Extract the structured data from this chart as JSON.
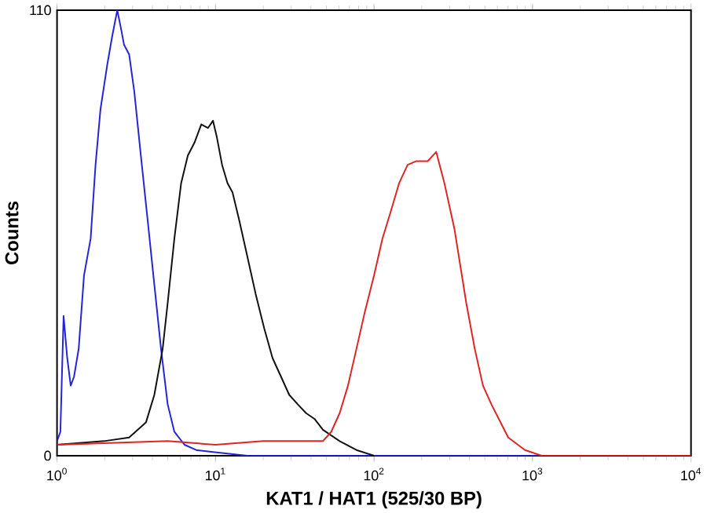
{
  "chart_data": {
    "type": "line",
    "xlabel": "KAT1 / HAT1 (525/30 BP)",
    "ylabel": "Counts",
    "log": "x",
    "xlim": [
      1,
      10000
    ],
    "ylim": [
      0,
      110
    ],
    "xticks": [
      {
        "value": 1,
        "label": "10$^{0}$"
      },
      {
        "value": 10,
        "label": "10$^{1}$"
      },
      {
        "value": 100,
        "label": "10$^{2}$"
      },
      {
        "value": 1000,
        "label": "10$^{3}$"
      },
      {
        "value": 10000,
        "label": "10$^{4}$"
      }
    ],
    "yticks": [
      0,
      110
    ],
    "series": [
      {
        "color": "#2424d8",
        "x": [
          1,
          1.05,
          1.1,
          1.16,
          1.22,
          1.28,
          1.37,
          1.48,
          1.63,
          1.75,
          1.88,
          2.08,
          2.23,
          2.4,
          2.52,
          2.65,
          2.85,
          3.07,
          3.38,
          3.73,
          4.11,
          4.53,
          4.99,
          5.5,
          6.37,
          7.55,
          9.64,
          15.9,
          10000
        ],
        "values": [
          3.6,
          5.9,
          34.5,
          24.1,
          17.3,
          19.5,
          26.4,
          44.5,
          53.6,
          71.8,
          85.5,
          96.8,
          103.6,
          110,
          105.9,
          101.4,
          99.1,
          90,
          74.1,
          58.2,
          42.3,
          26.4,
          12.7,
          5.9,
          2.7,
          1.4,
          0.9,
          0,
          0
        ]
      },
      {
        "color": "#111111",
        "x": [
          1,
          1.98,
          2.85,
          3.64,
          4.11,
          4.64,
          4.99,
          5.5,
          6.07,
          6.69,
          7.37,
          8.13,
          8.96,
          9.64,
          10.2,
          11.0,
          11.9,
          12.8,
          14.1,
          15.9,
          17.9,
          20.3,
          22.9,
          25.9,
          29.2,
          33,
          37.3,
          42.1,
          47.6,
          60.7,
          77.5,
          100
        ],
        "values": [
          2.7,
          3.6,
          4.5,
          8.2,
          15,
          26.4,
          37.7,
          53.6,
          67.3,
          74.1,
          77.3,
          81.8,
          80.9,
          82.7,
          78.6,
          71.8,
          67.3,
          65,
          58.2,
          49.1,
          40,
          31.4,
          24.1,
          19.5,
          15,
          12.7,
          10.5,
          9.1,
          6.4,
          3.6,
          1.4,
          0
        ]
      },
      {
        "color": "#e02424",
        "x": [
          1,
          5,
          10,
          20,
          40,
          47.6,
          53.7,
          60.7,
          68.5,
          77.5,
          87.5,
          100,
          113,
          128,
          144,
          163,
          184,
          218,
          247,
          278,
          322,
          382,
          432,
          487,
          550,
          703,
          896,
          1143,
          10000
        ],
        "values": [
          2.7,
          3.6,
          2.7,
          3.6,
          3.6,
          3.6,
          5.9,
          10.5,
          17.3,
          26.4,
          35.5,
          44.5,
          53.6,
          60.5,
          67.3,
          71.8,
          72.7,
          72.7,
          75,
          67.3,
          55.9,
          37.7,
          26.4,
          17.3,
          12.7,
          4.5,
          1.4,
          0,
          0
        ]
      }
    ]
  }
}
